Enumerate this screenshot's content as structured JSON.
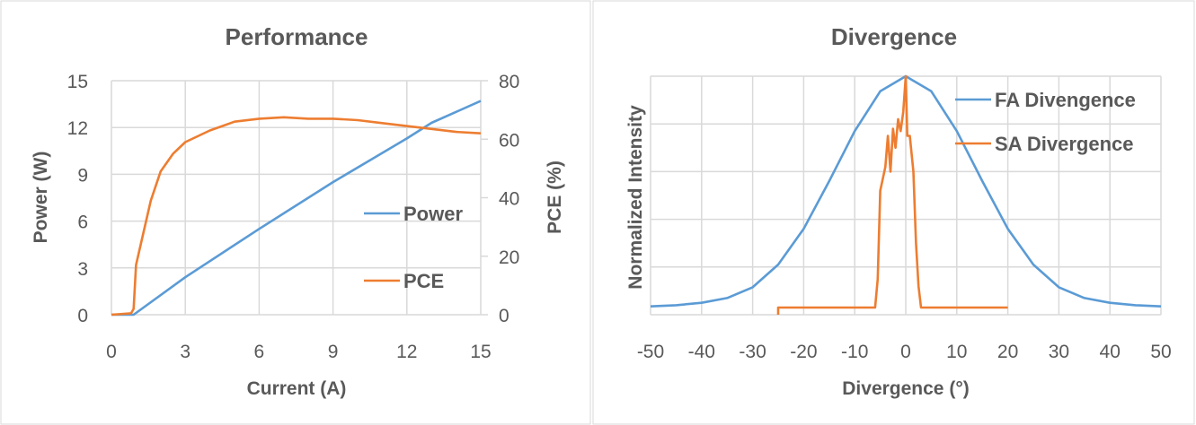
{
  "colors": {
    "blue": "#5b9bd5",
    "orange": "#ed7d31",
    "grid": "#d9d9d9",
    "text": "#595959"
  },
  "chart_data": [
    {
      "type": "line",
      "title": "Performance",
      "xlabel": "Current (A)",
      "ylabel": "Power (W)",
      "y2label": "PCE (%)",
      "xlim": [
        0,
        15
      ],
      "ylim": [
        0,
        15
      ],
      "y2lim": [
        0,
        80
      ],
      "xticks": [
        "0",
        "3",
        "6",
        "9",
        "12",
        "15"
      ],
      "yticks": [
        "0",
        "3",
        "6",
        "9",
        "12",
        "15"
      ],
      "y2ticks": [
        "0",
        "20",
        "40",
        "60",
        "80"
      ],
      "legend": [
        "Power",
        "PCE"
      ],
      "legend_position": "right",
      "series": [
        {
          "name": "Power",
          "axis": "left",
          "x": [
            0,
            0.9,
            3,
            6,
            9,
            10.5,
            12,
            13,
            15
          ],
          "y": [
            0,
            0,
            2.4,
            5.5,
            8.5,
            9.9,
            11.3,
            12.3,
            13.7
          ]
        },
        {
          "name": "PCE",
          "axis": "right",
          "x": [
            0,
            0.5,
            0.8,
            0.9,
            1,
            1.3,
            1.6,
            2,
            2.5,
            3,
            4,
            5,
            6,
            7,
            8,
            9,
            10,
            11,
            12,
            13,
            14,
            15
          ],
          "y": [
            0,
            0.3,
            0.5,
            2,
            17,
            28,
            39,
            49,
            55,
            59,
            63,
            66,
            67,
            67.5,
            67,
            67,
            66.5,
            65.5,
            64.5,
            63.5,
            62.5,
            62
          ]
        }
      ]
    },
    {
      "type": "line",
      "title": "Divergence",
      "xlabel": "Divergence (°)",
      "ylabel": "Normalized  Intensity",
      "xlim": [
        -50,
        50
      ],
      "ylim": [
        0,
        1
      ],
      "xticks": [
        "-50",
        "-40",
        "-30",
        "-20",
        "-10",
        "0",
        "10",
        "20",
        "30",
        "40",
        "50"
      ],
      "legend": [
        "FA Divengence",
        "SA Divergence"
      ],
      "legend_position": "top-right",
      "series": [
        {
          "name": "FA Divengence",
          "x": [
            -50,
            -45,
            -40,
            -35,
            -30,
            -25,
            -20,
            -15,
            -10,
            -5,
            0,
            5,
            10,
            15,
            20,
            25,
            30,
            35,
            40,
            45,
            50
          ],
          "y": [
            0.035,
            0.04,
            0.05,
            0.07,
            0.115,
            0.21,
            0.36,
            0.56,
            0.77,
            0.937,
            1,
            0.937,
            0.77,
            0.56,
            0.36,
            0.21,
            0.115,
            0.07,
            0.05,
            0.04,
            0.035
          ]
        },
        {
          "name": "SA Divergence",
          "x": [
            -25,
            -25,
            -6,
            -5.5,
            -5,
            -4,
            -3.5,
            -3,
            -2.5,
            -2,
            -1.5,
            -1,
            -0.5,
            0,
            0.3,
            0.8,
            1.5,
            2,
            2.5,
            3,
            3.5,
            4,
            20
          ],
          "y": [
            0,
            0.03,
            0.03,
            0.15,
            0.52,
            0.62,
            0.75,
            0.6,
            0.78,
            0.7,
            0.82,
            0.77,
            0.85,
            1,
            0.75,
            0.75,
            0.6,
            0.3,
            0.12,
            0.03,
            0.03,
            0.03,
            0.03
          ]
        }
      ]
    }
  ]
}
